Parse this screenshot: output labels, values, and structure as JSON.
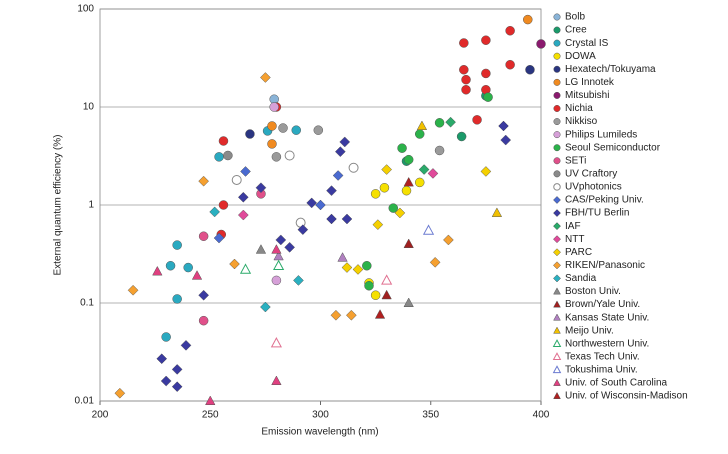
{
  "chart_data": {
    "type": "scatter",
    "x_label": "Emission wavelength (nm)",
    "y_label": "External quantum efficiency (%)",
    "xlim": [
      200,
      400
    ],
    "xticks": [
      200,
      250,
      300,
      350,
      400
    ],
    "ylim": [
      0.01,
      100
    ],
    "yticks": [
      0.01,
      0.1,
      1,
      10,
      100
    ],
    "y_scale": "log",
    "grid": true,
    "legend": "right",
    "series": [
      {
        "name": "Bolb",
        "color": "#8ab4d8",
        "marker": "circle",
        "x": [
          279
        ],
        "values": [
          12
        ]
      },
      {
        "name": "Cree",
        "color": "#1a9a6a",
        "marker": "circle",
        "x": [
          375,
          364,
          339
        ],
        "values": [
          13,
          5,
          2.8
        ]
      },
      {
        "name": "Crystal IS",
        "color": "#2aa9c0",
        "marker": "circle",
        "x": [
          276,
          254,
          235,
          232,
          240,
          235,
          230,
          289
        ],
        "values": [
          5.7,
          3.1,
          0.39,
          0.24,
          0.23,
          0.11,
          0.045,
          5.8
        ]
      },
      {
        "name": "DOWA",
        "color": "#f5e000",
        "marker": "circle",
        "x": [
          325,
          329,
          339,
          345,
          325,
          322
        ],
        "values": [
          1.3,
          1.5,
          1.4,
          1.7,
          0.12,
          0.16
        ]
      },
      {
        "name": "Hexatech/Tokuyama",
        "color": "#2a3580",
        "marker": "circle",
        "x": [
          268,
          395
        ],
        "values": [
          5.3,
          24
        ]
      },
      {
        "name": "LG Innotek",
        "color": "#f08a20",
        "marker": "circle",
        "x": [
          394,
          278,
          278
        ],
        "values": [
          78,
          6.4,
          4.2
        ]
      },
      {
        "name": "Mitsubishi",
        "color": "#8a1a6e",
        "marker": "circle",
        "x": [
          400
        ],
        "values": [
          44
        ]
      },
      {
        "name": "Nichia",
        "color": "#e02a2a",
        "marker": "circle",
        "x": [
          365,
          375,
          386,
          365,
          366,
          366,
          375,
          375,
          386,
          371,
          280,
          256,
          256,
          255
        ],
        "values": [
          45,
          48,
          60,
          24,
          19,
          15,
          22,
          15,
          27,
          7.4,
          10,
          4.5,
          1.0,
          0.5
        ]
      },
      {
        "name": "Nikkiso",
        "color": "#9a9a9a",
        "marker": "circle",
        "x": [
          283,
          299,
          354,
          280
        ],
        "values": [
          6.1,
          5.8,
          3.6,
          3.1
        ]
      },
      {
        "name": "Philips Lumileds",
        "color": "#d6a0d8",
        "marker": "circle",
        "x": [
          279,
          280
        ],
        "values": [
          10,
          0.17
        ]
      },
      {
        "name": "Seoul Semiconductor",
        "color": "#2bb24a",
        "marker": "circle",
        "x": [
          354,
          345,
          337,
          340,
          322,
          321,
          376,
          333
        ],
        "values": [
          6.9,
          5.3,
          3.8,
          2.9,
          0.15,
          0.24,
          12.6,
          0.93
        ]
      },
      {
        "name": "SETi",
        "color": "#e0508a",
        "marker": "circle",
        "x": [
          247,
          247,
          273
        ],
        "values": [
          0.066,
          0.48,
          1.3
        ]
      },
      {
        "name": "UV Craftory",
        "color": "#8a8a8a",
        "marker": "circle",
        "x": [
          258
        ],
        "values": [
          3.2
        ]
      },
      {
        "name": "UVphotonics",
        "color": "#888888",
        "marker": "circle",
        "hollow": true,
        "x": [
          291,
          286,
          315,
          262
        ],
        "values": [
          0.66,
          3.2,
          2.4,
          1.8
        ]
      },
      {
        "name": "CAS/Peking Univ.",
        "color": "#4a6ad0",
        "marker": "diamond",
        "x": [
          254,
          266,
          300,
          308
        ],
        "values": [
          0.46,
          2.2,
          1.0,
          2.0
        ]
      },
      {
        "name": "FBH/TU Berlin",
        "color": "#3a3aa0",
        "marker": "diamond",
        "x": [
          228,
          230,
          235,
          239,
          235,
          247,
          265,
          273,
          282,
          286,
          292,
          296,
          305,
          311,
          309,
          305,
          312,
          383,
          384
        ],
        "values": [
          0.027,
          0.016,
          0.014,
          0.037,
          0.021,
          0.12,
          1.2,
          1.5,
          0.44,
          0.37,
          0.56,
          1.05,
          1.4,
          4.4,
          3.5,
          0.72,
          0.72,
          6.4,
          4.6
        ]
      },
      {
        "name": "IAF",
        "color": "#2aaa6a",
        "marker": "diamond",
        "x": [
          347,
          359
        ],
        "values": [
          2.3,
          7.0
        ]
      },
      {
        "name": "NTT",
        "color": "#e04a9a",
        "marker": "diamond",
        "x": [
          265,
          351
        ],
        "values": [
          0.79,
          2.1
        ]
      },
      {
        "name": "PARC",
        "color": "#f5d000",
        "marker": "diamond",
        "x": [
          375,
          330,
          326,
          317,
          312,
          336
        ],
        "values": [
          2.2,
          2.3,
          0.63,
          0.22,
          0.23,
          0.83
        ]
      },
      {
        "name": "RIKEN/Panasonic",
        "color": "#f5a030",
        "marker": "diamond",
        "x": [
          247,
          261,
          275,
          307,
          314,
          358,
          352,
          215,
          209
        ],
        "values": [
          1.75,
          0.25,
          20,
          0.075,
          0.075,
          0.44,
          0.26,
          0.135,
          0.012
        ]
      },
      {
        "name": "Sandia",
        "color": "#2ab0c0",
        "marker": "diamond",
        "x": [
          275,
          290,
          252
        ],
        "values": [
          0.091,
          0.17,
          0.85
        ]
      },
      {
        "name": "Boston Univ.",
        "color": "#888888",
        "marker": "triangle",
        "x": [
          340,
          273
        ],
        "values": [
          0.1,
          0.35
        ]
      },
      {
        "name": "Brown/Yale Univ.",
        "color": "#a02020",
        "marker": "triangle",
        "x": [
          340,
          330
        ],
        "values": [
          0.4,
          0.12
        ]
      },
      {
        "name": "Kansas State Univ.",
        "color": "#b080c0",
        "marker": "triangle",
        "x": [
          310,
          281
        ],
        "values": [
          0.29,
          0.3
        ]
      },
      {
        "name": "Meijo Univ.",
        "color": "#f0c000",
        "marker": "triangle",
        "x": [
          346,
          380
        ],
        "values": [
          6.4,
          0.83
        ]
      },
      {
        "name": "Northwestern Univ.",
        "color": "#2aaa6a",
        "marker": "triangle",
        "hollow": true,
        "x": [
          266,
          281
        ],
        "values": [
          0.22,
          0.24
        ]
      },
      {
        "name": "Texas Tech Univ.",
        "color": "#e07090",
        "marker": "triangle",
        "hollow": true,
        "x": [
          280,
          330
        ],
        "values": [
          0.039,
          0.17
        ]
      },
      {
        "name": "Tokushima Univ.",
        "color": "#6a7ad0",
        "marker": "triangle",
        "hollow": true,
        "x": [
          349
        ],
        "values": [
          0.55
        ]
      },
      {
        "name": "Univ. of South Carolina",
        "color": "#e04080",
        "marker": "triangle",
        "x": [
          226,
          250,
          280,
          244,
          280
        ],
        "values": [
          0.21,
          0.01,
          0.016,
          0.19,
          0.35
        ]
      },
      {
        "name": "Univ. of Wisconsin-Madison",
        "color": "#b02020",
        "marker": "triangle",
        "x": [
          327,
          340
        ],
        "values": [
          0.076,
          1.7
        ]
      }
    ]
  }
}
